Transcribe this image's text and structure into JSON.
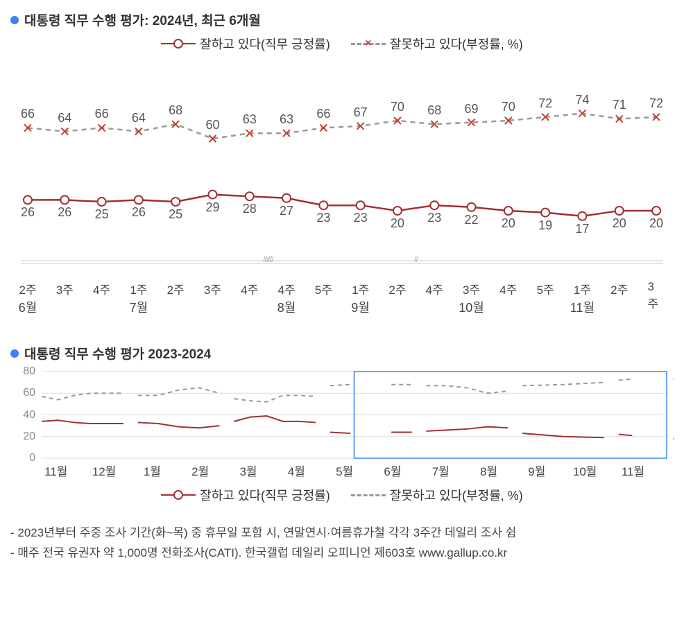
{
  "chart1": {
    "title": "대통령 직무 수행 평가: 2024년, 최근 6개월",
    "type": "line",
    "legend": {
      "positive": "잘하고 있다(직무 긍정률)",
      "negative": "잘못하고 있다(부정률, %)"
    },
    "colors": {
      "positive_line": "#a03030",
      "positive_marker_fill": "#ffffff",
      "positive_marker_stroke": "#a03030",
      "negative_line": "#999999",
      "negative_marker": "#c04030",
      "label_text": "#555555",
      "axis_line": "#cccccc"
    },
    "line_width": 2.5,
    "marker_size": 6,
    "ylim": [
      0,
      100
    ],
    "weeks": [
      "2주",
      "3주",
      "4주",
      "1주",
      "2주",
      "3주",
      "4주",
      "4주",
      "5주",
      "1주",
      "2주",
      "4주",
      "3주",
      "4주",
      "5주",
      "1주",
      "2주",
      "3주"
    ],
    "months": [
      {
        "label": "6월",
        "span_start": 0,
        "span_end": 2
      },
      {
        "label": "7월",
        "span_start": 3,
        "span_end": 6
      },
      {
        "label": "8월",
        "span_start": 7,
        "span_end": 8
      },
      {
        "label": "9월",
        "span_start": 9,
        "span_end": 11
      },
      {
        "label": "10월",
        "span_start": 12,
        "span_end": 14
      },
      {
        "label": "11월",
        "span_start": 15,
        "span_end": 17
      }
    ],
    "skip_marks_after_index": [
      6,
      10
    ],
    "positive": [
      26,
      26,
      25,
      26,
      25,
      29,
      28,
      27,
      23,
      23,
      20,
      23,
      22,
      20,
      19,
      17,
      20,
      20
    ],
    "negative": [
      66,
      64,
      66,
      64,
      68,
      60,
      63,
      63,
      66,
      67,
      70,
      68,
      69,
      70,
      72,
      74,
      71,
      72
    ]
  },
  "chart2": {
    "title": "대통령 직무 수행 평가 2023-2024",
    "type": "line",
    "legend": {
      "positive": "잘하고 있다(직무 긍정률)",
      "negative": "잘못하고 있다(부정률, %)"
    },
    "colors": {
      "positive_line": "#a03030",
      "negative_line": "#999999",
      "grid": "#dddddd",
      "highlight_box": "#3b82f6",
      "axis_text": "#888888"
    },
    "line_width": 2,
    "ylim": [
      0,
      80
    ],
    "ytick_step": 20,
    "yticks": [
      0,
      20,
      40,
      60,
      80
    ],
    "months": [
      "11월",
      "12월",
      "1월",
      "2월",
      "3월",
      "4월",
      "5월",
      "6월",
      "7월",
      "8월",
      "9월",
      "10월",
      "11월"
    ],
    "highlight_start_month_index": 6.5,
    "highlight_end_month_index": 13,
    "segments_negative": [
      [
        57,
        54,
        58,
        60,
        60,
        60
      ],
      [
        58,
        58,
        63,
        65,
        60
      ],
      [
        55,
        53,
        52,
        58,
        58,
        57
      ],
      [
        67,
        68,
        null,
        68,
        68
      ],
      [
        67,
        67,
        65,
        60,
        62
      ],
      [
        67,
        68,
        70
      ],
      [
        72,
        73,
        null,
        null,
        73,
        72,
        72
      ]
    ],
    "segments_positive": [
      [
        34,
        35,
        33,
        32,
        32,
        32
      ],
      [
        33,
        32,
        29,
        28,
        30
      ],
      [
        34,
        38,
        39,
        34,
        34,
        33
      ],
      [
        24,
        23,
        null,
        24,
        24
      ],
      [
        25,
        26,
        27,
        29,
        28
      ],
      [
        23,
        20,
        19
      ],
      [
        22,
        21,
        null,
        null,
        18,
        20,
        20
      ]
    ],
    "segment_month_start": [
      0,
      2,
      4,
      6,
      8,
      10,
      12
    ],
    "segment_weeks_span": 2
  },
  "footnotes": {
    "line1": "2023년부터 주중 조사 기간(화~목) 중 휴무일 포함 시, 연말연시·여름휴가철 각각 3주간 데일리 조사 쉼",
    "line2": "매주 전국 유권자 약 1,000명 전화조사(CATI). 한국갤럽 데일리 오피니언 제603호 www.gallup.co.kr"
  }
}
